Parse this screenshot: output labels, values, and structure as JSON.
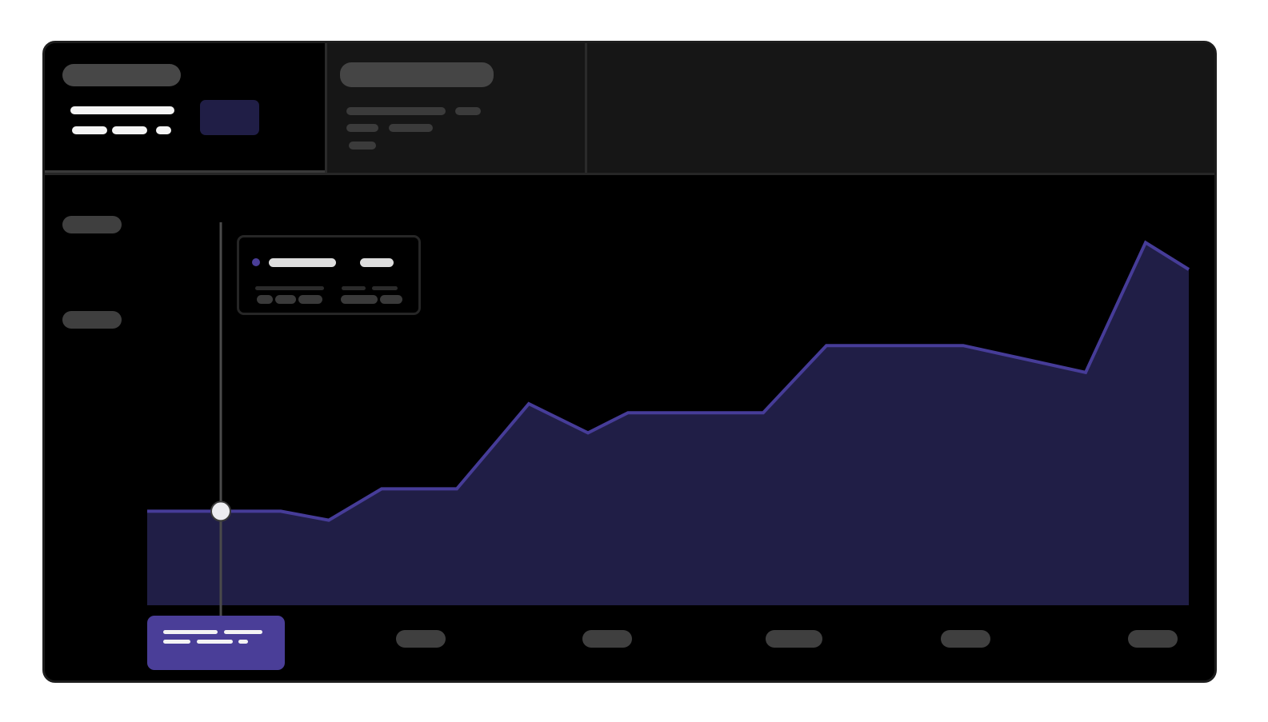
{
  "header": {
    "main_card": {
      "title": "",
      "value": "",
      "detail": "",
      "badge": ""
    },
    "secondary_card": {
      "title": "",
      "lines": [
        "",
        "",
        ""
      ]
    }
  },
  "tooltip": {
    "series_name": "",
    "value": "",
    "detail": ""
  },
  "y_axis": {
    "labels": [
      "",
      ""
    ]
  },
  "x_axis": {
    "active_label": "",
    "labels": [
      "",
      "",
      "",
      "",
      "",
      ""
    ]
  },
  "colors": {
    "series_line": "#463c98",
    "series_fill": "#201e46",
    "cursor_line": "#4a4a4a",
    "active_label_bg": "#4a3e98"
  },
  "chart_data": {
    "type": "area",
    "series": [
      {
        "values": [
          42,
          42,
          42,
          38,
          52,
          52,
          90,
          77,
          86,
          86,
          86,
          116,
          116,
          116,
          104,
          162,
          150
        ]
      }
    ],
    "x": [
      0,
      1,
      2,
      3,
      4,
      5,
      6,
      7,
      8,
      9,
      10,
      11,
      12,
      13,
      14,
      15,
      16
    ],
    "ylim": [
      0,
      200
    ],
    "grid": false,
    "highlighted_index": 1
  }
}
